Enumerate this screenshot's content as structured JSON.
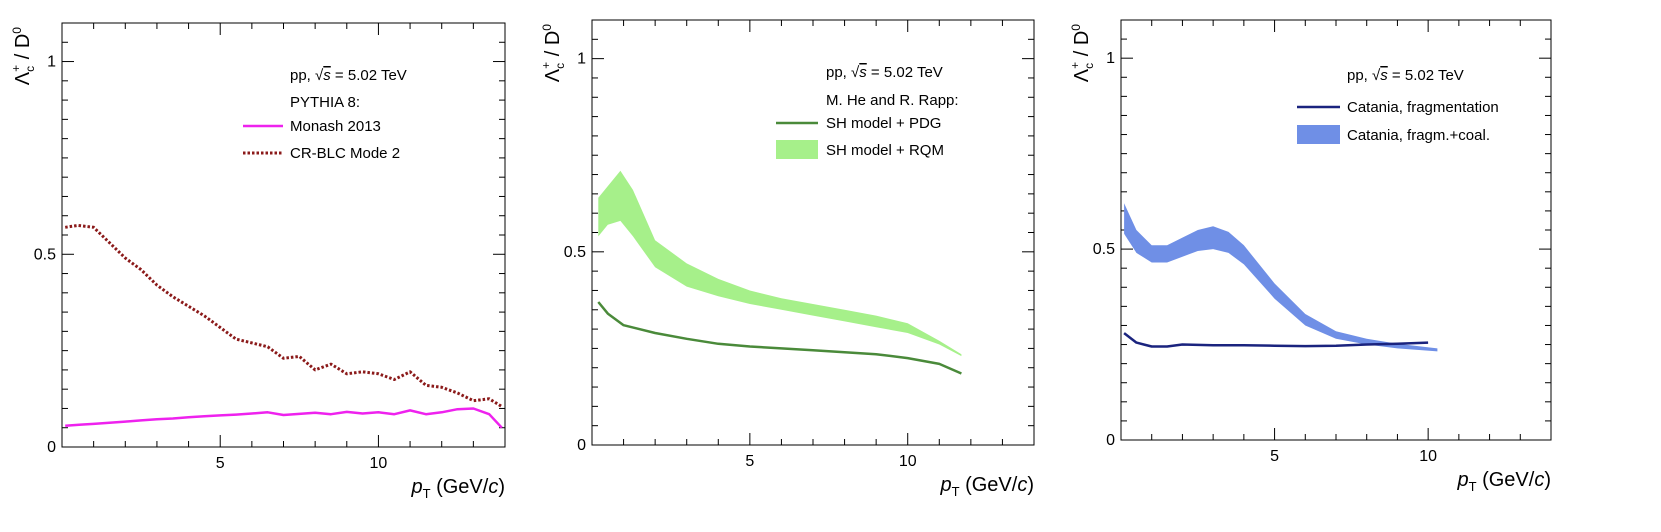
{
  "chart_data": [
    {
      "type": "line",
      "xlabel": {
        "var": "p",
        "sub": "T",
        "unit_open": "(GeV/",
        "unit_var": "c",
        "unit_close": ")"
      },
      "ylabel": {
        "main": "Λ",
        "sub": "c",
        "sup": "+",
        "rest": " / D",
        "rest_sup": "0"
      },
      "xlim": [
        0,
        14
      ],
      "ylim": [
        0,
        1.1
      ],
      "xticks": [
        5,
        10
      ],
      "yticks": [
        0,
        0.5,
        1
      ],
      "ytick_labels": [
        "0",
        "0.5",
        "1"
      ],
      "legend_header": {
        "pre": "pp, ",
        "sqrt": "√",
        "s": "s",
        "post": " = 5.02 TeV"
      },
      "legend_subheader": "PYTHIA 8:",
      "series": [
        {
          "name": "Monash 2013",
          "style": "solid",
          "color": "#ee22ee",
          "x": [
            0.1,
            0.6,
            1.0,
            1.5,
            2.0,
            2.5,
            3.0,
            3.5,
            4.0,
            4.5,
            5.0,
            5.5,
            6.0,
            6.5,
            7.0,
            7.5,
            8.0,
            8.5,
            9.0,
            9.5,
            10.0,
            10.5,
            11.0,
            11.5,
            12.0,
            12.5,
            13.0,
            13.5,
            13.9
          ],
          "y": [
            0.055,
            0.058,
            0.06,
            0.063,
            0.066,
            0.069,
            0.072,
            0.074,
            0.077,
            0.08,
            0.082,
            0.084,
            0.087,
            0.09,
            0.083,
            0.086,
            0.089,
            0.085,
            0.091,
            0.087,
            0.09,
            0.085,
            0.095,
            0.085,
            0.09,
            0.098,
            0.1,
            0.085,
            0.05
          ]
        },
        {
          "name": "CR-BLC Mode 2",
          "style": "dotted",
          "color": "#8b1a1a",
          "x": [
            0.1,
            0.5,
            1.0,
            1.5,
            2.0,
            2.5,
            3.0,
            3.5,
            4.0,
            4.5,
            5.0,
            5.5,
            6.0,
            6.5,
            7.0,
            7.5,
            8.0,
            8.5,
            9.0,
            9.5,
            10.0,
            10.5,
            11.0,
            11.5,
            12.0,
            12.5,
            13.0,
            13.5,
            13.9
          ],
          "y": [
            0.57,
            0.575,
            0.57,
            0.53,
            0.49,
            0.46,
            0.42,
            0.39,
            0.365,
            0.34,
            0.31,
            0.28,
            0.27,
            0.26,
            0.23,
            0.235,
            0.2,
            0.215,
            0.19,
            0.195,
            0.19,
            0.175,
            0.195,
            0.16,
            0.155,
            0.14,
            0.12,
            0.125,
            0.105
          ]
        }
      ]
    },
    {
      "type": "line",
      "xlabel": {
        "var": "p",
        "sub": "T",
        "unit_open": "(GeV/",
        "unit_var": "c",
        "unit_close": ")"
      },
      "ylabel": {
        "main": "Λ",
        "sub": "c",
        "sup": "+",
        "rest": " / D",
        "rest_sup": "0"
      },
      "xlim": [
        0,
        14
      ],
      "ylim": [
        0,
        1.1
      ],
      "xticks": [
        5,
        10
      ],
      "yticks": [
        0,
        0.5,
        1
      ],
      "ytick_labels": [
        "0",
        "0.5",
        "1"
      ],
      "legend_header": {
        "pre": "pp, ",
        "sqrt": "√",
        "s": "s",
        "post": " = 5.02 TeV"
      },
      "legend_subheader": "M. He and R. Rapp:",
      "series": [
        {
          "name": "SH model + PDG",
          "style": "solid",
          "color": "#4a8a3a",
          "x": [
            0.2,
            0.5,
            1.0,
            2.0,
            3.0,
            4.0,
            5.0,
            6.0,
            7.0,
            8.0,
            9.0,
            10.0,
            11.0,
            11.7
          ],
          "y": [
            0.37,
            0.34,
            0.31,
            0.29,
            0.275,
            0.262,
            0.255,
            0.25,
            0.245,
            0.24,
            0.235,
            0.225,
            0.21,
            0.185
          ]
        }
      ],
      "bands": [
        {
          "name": "SH model + RQM",
          "color": "#a6f08a",
          "x": [
            0.2,
            0.5,
            0.9,
            1.3,
            2.0,
            3.0,
            4.0,
            5.0,
            6.0,
            7.0,
            8.0,
            9.0,
            10.0,
            11.0,
            11.7
          ],
          "lower": [
            0.54,
            0.57,
            0.58,
            0.54,
            0.46,
            0.41,
            0.385,
            0.365,
            0.35,
            0.335,
            0.32,
            0.305,
            0.29,
            0.26,
            0.23
          ],
          "upper": [
            0.64,
            0.67,
            0.71,
            0.66,
            0.53,
            0.47,
            0.43,
            0.4,
            0.38,
            0.365,
            0.35,
            0.335,
            0.315,
            0.27,
            0.235
          ]
        }
      ]
    },
    {
      "type": "line",
      "xlabel": {
        "var": "p",
        "sub": "T",
        "unit_open": "(GeV/",
        "unit_var": "c",
        "unit_close": ")"
      },
      "ylabel": {
        "main": "Λ",
        "sub": "c",
        "sup": "+",
        "rest": " / D",
        "rest_sup": "0"
      },
      "xlim": [
        0,
        14
      ],
      "ylim": [
        0,
        1.1
      ],
      "xticks": [
        5,
        10
      ],
      "yticks": [
        0,
        0.5,
        1
      ],
      "ytick_labels": [
        "0",
        "0.5",
        "1"
      ],
      "legend_header": {
        "pre": "pp, ",
        "sqrt": "√",
        "s": "s",
        "post": " = 5.02 TeV"
      },
      "legend_subheader": "",
      "series": [
        {
          "name": "Catania, fragmentation",
          "style": "solid",
          "color": "#1a237e",
          "x": [
            0.1,
            0.5,
            1.0,
            1.5,
            2.0,
            3.0,
            4.0,
            5.0,
            6.0,
            7.0,
            8.0,
            9.0,
            10.0
          ],
          "y": [
            0.28,
            0.255,
            0.245,
            0.245,
            0.25,
            0.248,
            0.248,
            0.247,
            0.246,
            0.247,
            0.25,
            0.252,
            0.255
          ]
        }
      ],
      "bands": [
        {
          "name": "Catania, fragm.+coal.",
          "color": "#6f8fe6",
          "x": [
            0.1,
            0.5,
            1.0,
            1.5,
            2.0,
            2.5,
            3.0,
            3.5,
            4.0,
            5.0,
            6.0,
            7.0,
            8.0,
            9.0,
            10.3
          ],
          "lower": [
            0.54,
            0.49,
            0.465,
            0.465,
            0.48,
            0.495,
            0.5,
            0.49,
            0.46,
            0.37,
            0.3,
            0.265,
            0.25,
            0.24,
            0.232
          ],
          "upper": [
            0.62,
            0.55,
            0.51,
            0.51,
            0.53,
            0.55,
            0.56,
            0.545,
            0.51,
            0.41,
            0.33,
            0.285,
            0.265,
            0.252,
            0.24
          ]
        }
      ]
    }
  ]
}
